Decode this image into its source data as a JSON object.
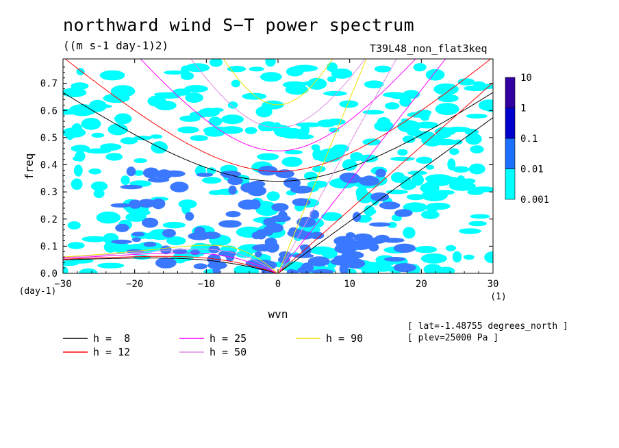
{
  "title": "northward wind S−T power spectrum",
  "subtitle": "((m s-1 day-1)2)",
  "experiment": "T39L48_non_flat3keq",
  "info": [
    "[ lat=-1.48755 degrees_north ]",
    "[ plev=25000 Pa ]"
  ],
  "chart_data": {
    "type": "heatmap",
    "title": "northward wind S−T power spectrum",
    "subtitle": "((m s-1 day-1)2)",
    "xlabel": "wvn",
    "xunit": "(1)",
    "ylabel": "freq",
    "yunit": "(day-1)",
    "xlim": [
      -30,
      30
    ],
    "ylim": [
      0,
      0.79
    ],
    "xticks": [
      -30,
      -20,
      -10,
      0,
      10,
      20,
      30
    ],
    "xtick_labels": [
      "−30",
      "−20",
      "−10",
      "0",
      "10",
      "20",
      "30"
    ],
    "yticks": [
      0,
      0.1,
      0.2,
      0.3,
      0.4,
      0.5,
      0.6,
      0.7
    ],
    "ytick_labels": [
      "0.0",
      "0.1",
      "0.2",
      "0.3",
      "0.4",
      "0.5",
      "0.6",
      "0.7"
    ],
    "colorbar": {
      "levels": [
        0.001,
        0.01,
        0.1,
        1,
        10
      ],
      "labels": [
        "0.001",
        "0.01",
        "0.1",
        "1",
        "10"
      ],
      "colors": [
        "#00ffff",
        "#1a6fff",
        "#0000cc",
        "#3300a0"
      ]
    },
    "field_colors": [
      "#00ffff",
      "#3a78ff"
    ],
    "dispersion_curves": [
      {
        "label": "h =  8",
        "h": 8,
        "color": "#000000"
      },
      {
        "label": "h = 12",
        "h": 12,
        "color": "#ff0000"
      },
      {
        "label": "h = 25",
        "h": 25,
        "color": "#ff00ff"
      },
      {
        "label": "h = 50",
        "h": 50,
        "color": "#e08ae0"
      },
      {
        "label": "h = 90",
        "h": 90,
        "color": "#f0e000"
      }
    ]
  }
}
